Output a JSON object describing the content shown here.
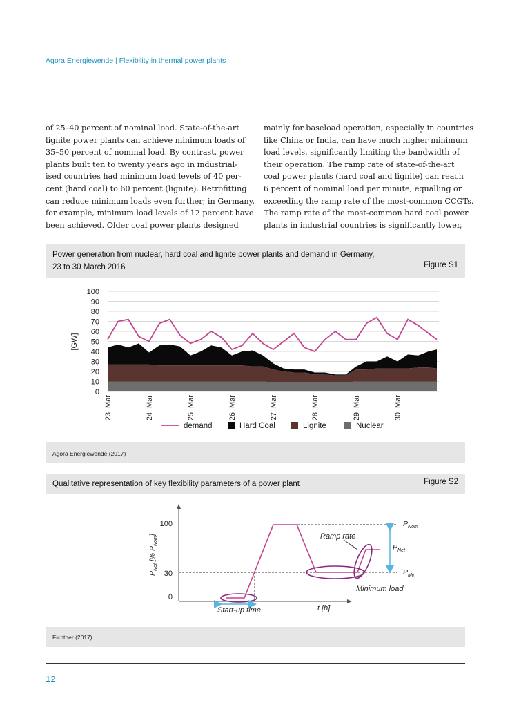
{
  "header": {
    "text": "Agora Energiewende | Flexibility in thermal power plants"
  },
  "body": {
    "col1": [
      "of 25–40 percent of nominal load. State-of-the-art",
      "lignite power plants can achieve minimum loads of",
      "35–50 percent of nominal load. By contrast, power",
      "plants built ten to twenty years ago in industrial-",
      "ised countries had minimum load levels of 40 per-",
      "cent (hard coal) to 60 percent (lignite). Retrofitting",
      "can reduce minimum loads even further; in Germany,",
      "for example, minimum load levels of 12 percent have",
      "been achieved. Older coal power plants designed"
    ],
    "col2": [
      "mainly for baseload operation, especially in countries",
      "like China or India, can have much higher minimum",
      "load levels, significantly limiting the bandwidth of",
      "their operation. The ramp rate of state-of-the-art",
      "coal power plants (hard coal and lignite) can reach",
      "6 percent of nominal load per minute, equalling or",
      "exceeding the ramp rate of the most-common CCGTs.",
      "The ramp rate of the most-common hard coal power",
      "plants in industrial countries is significantly lower,"
    ]
  },
  "figure1": {
    "title_line1": "Power generation from nuclear, hard coal and lignite power plants and demand in Germany,",
    "title_line2": "23 to 30 March 2016",
    "label": "Figure S1",
    "source": "Agora Energiewende (2017)"
  },
  "figure2": {
    "title": "Qualitative representation of key flexibility parameters of a power plant",
    "label": "Figure  S2",
    "source": "Fichtner (2017)",
    "ylabel": "P",
    "ylabel_sub": "Net",
    "ylabel_mid": " [% P",
    "ylabel_sub2": "Nom",
    "ylabel_end": "]",
    "y_ticks": [
      "100",
      "30",
      "0"
    ],
    "xlabel": "t [h]",
    "ramp_rate": "Ramp rate",
    "minimum_load": "Minimum load",
    "startup_time": "Start-up time",
    "p_nom": "P",
    "p_nom_sub": "Nom",
    "p_net": "P",
    "p_net_sub": "Net",
    "p_min": "P",
    "p_min_sub": "Min"
  },
  "page_number": "12",
  "chart_data": {
    "type": "area",
    "title": "Power generation from nuclear, hard coal and lignite power plants and demand in Germany, 23 to 30 March 2016",
    "ylabel": "[GW]",
    "ylim": [
      0,
      100
    ],
    "y_ticks": [
      0,
      10,
      20,
      30,
      40,
      50,
      60,
      70,
      80,
      90,
      100
    ],
    "x_ticks": [
      "23. Mar",
      "24. Mar",
      "25. Mar",
      "26. Mar",
      "27. Mar",
      "28. Mar",
      "29. Mar",
      "30. Mar"
    ],
    "x": [
      0,
      0.25,
      0.5,
      0.75,
      1.0,
      1.25,
      1.5,
      1.75,
      2.0,
      2.25,
      2.5,
      2.75,
      3.0,
      3.25,
      3.5,
      3.75,
      4.0,
      4.25,
      4.5,
      4.75,
      5.0,
      5.25,
      5.5,
      5.75,
      6.0,
      6.25,
      6.5,
      6.75,
      7.0,
      7.25,
      7.5,
      7.75,
      7.95
    ],
    "x_unit": "days after 23 March 2016 00:00",
    "legend": [
      "demand",
      "Hard Coal",
      "Lignite",
      "Nuclear"
    ],
    "legend_position": "bottom",
    "colors": {
      "demand": "#c4458f",
      "Hard Coal": "#0a0a0a",
      "Lignite": "#5a3530",
      "Nuclear": "#6e6e6e"
    },
    "series": [
      {
        "name": "Nuclear",
        "values": [
          10,
          10,
          10,
          10,
          10,
          10,
          10,
          10,
          10,
          10,
          10,
          10,
          10,
          10,
          10,
          10,
          9,
          9,
          9,
          9,
          9,
          9,
          9,
          9,
          10,
          10,
          10,
          10,
          10,
          10,
          10,
          10,
          10
        ]
      },
      {
        "name": "Lignite",
        "values": [
          17,
          17,
          17,
          17,
          17,
          16,
          16,
          16,
          16,
          16,
          16,
          16,
          16,
          16,
          15,
          15,
          13,
          11,
          10,
          10,
          8,
          8,
          7,
          7,
          12,
          12,
          13,
          13,
          13,
          13,
          14,
          14,
          13
        ]
      },
      {
        "name": "Hard Coal",
        "values": [
          17,
          20,
          17,
          21,
          12,
          20,
          21,
          19,
          10,
          14,
          20,
          18,
          10,
          14,
          16,
          11,
          6,
          3,
          3,
          3,
          2,
          2,
          1,
          1,
          3,
          8,
          7,
          12,
          7,
          14,
          12,
          16,
          19
        ]
      },
      {
        "name": "demand",
        "values": [
          52,
          70,
          72,
          55,
          50,
          68,
          72,
          56,
          48,
          52,
          60,
          54,
          42,
          46,
          58,
          48,
          42,
          50,
          58,
          44,
          40,
          52,
          60,
          52,
          52,
          68,
          74,
          58,
          52,
          72,
          66,
          58,
          52
        ]
      }
    ]
  }
}
